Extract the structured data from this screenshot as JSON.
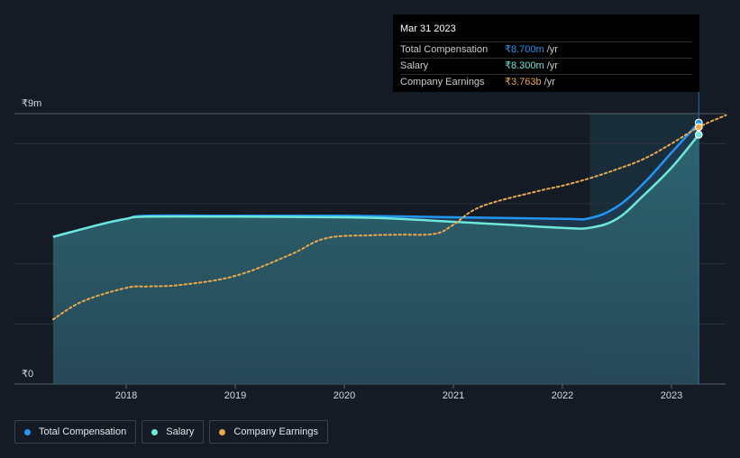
{
  "chart_data": {
    "type": "area",
    "title": "",
    "xlabel": "",
    "ylabel": "",
    "ylim": [
      0,
      9
    ],
    "y_unit": "₹m",
    "y_tick_labels": {
      "top": "₹9m",
      "bottom": "₹0"
    },
    "x_ticks": [
      "2018",
      "2019",
      "2020",
      "2021",
      "2022",
      "2023"
    ],
    "x_range": [
      2017.25,
      2023.5
    ],
    "highlight_range": [
      2022.25,
      2023.25
    ],
    "series": [
      {
        "name": "Total Compensation",
        "color": "#2196f3",
        "points": [
          [
            2017.33,
            4.9
          ],
          [
            2017.75,
            5.3
          ],
          [
            2018.0,
            5.5
          ],
          [
            2018.2,
            5.6
          ],
          [
            2019.0,
            5.6
          ],
          [
            2020.0,
            5.6
          ],
          [
            2021.0,
            5.55
          ],
          [
            2022.0,
            5.5
          ],
          [
            2022.25,
            5.52
          ],
          [
            2022.5,
            5.9
          ],
          [
            2022.75,
            6.7
          ],
          [
            2023.0,
            7.7
          ],
          [
            2023.25,
            8.7
          ]
        ]
      },
      {
        "name": "Salary",
        "color": "#6ee7d8",
        "points": [
          [
            2017.33,
            4.9
          ],
          [
            2017.75,
            5.3
          ],
          [
            2018.0,
            5.5
          ],
          [
            2018.2,
            5.57
          ],
          [
            2019.0,
            5.57
          ],
          [
            2020.0,
            5.55
          ],
          [
            2020.5,
            5.5
          ],
          [
            2021.0,
            5.4
          ],
          [
            2021.5,
            5.3
          ],
          [
            2022.0,
            5.2
          ],
          [
            2022.25,
            5.2
          ],
          [
            2022.5,
            5.5
          ],
          [
            2022.75,
            6.3
          ],
          [
            2023.0,
            7.2
          ],
          [
            2023.25,
            8.3
          ]
        ]
      },
      {
        "name": "Company Earnings",
        "color": "#e8a94c",
        "dashed": true,
        "points": [
          [
            2017.33,
            2.15
          ],
          [
            2017.6,
            2.75
          ],
          [
            2018.0,
            3.2
          ],
          [
            2018.2,
            3.25
          ],
          [
            2018.5,
            3.3
          ],
          [
            2019.0,
            3.6
          ],
          [
            2019.5,
            4.3
          ],
          [
            2019.83,
            4.85
          ],
          [
            2020.25,
            4.95
          ],
          [
            2020.5,
            4.97
          ],
          [
            2020.83,
            5.0
          ],
          [
            2021.0,
            5.3
          ],
          [
            2021.25,
            5.9
          ],
          [
            2021.75,
            6.4
          ],
          [
            2022.0,
            6.6
          ],
          [
            2022.25,
            6.85
          ],
          [
            2022.5,
            7.15
          ],
          [
            2022.75,
            7.5
          ],
          [
            2023.0,
            8.0
          ],
          [
            2023.25,
            8.55
          ],
          [
            2023.5,
            8.95
          ]
        ]
      }
    ],
    "tooltip": {
      "date": "Mar 31 2023",
      "rows": [
        {
          "label": "Total Compensation",
          "value": "₹8.700m",
          "unit": "/yr",
          "color": "#2196f3"
        },
        {
          "label": "Salary",
          "value": "₹8.300m",
          "unit": "/yr",
          "color": "#6ee7d8"
        },
        {
          "label": "Company Earnings",
          "value": "₹3.763b",
          "unit": "/yr",
          "color": "#e8a94c"
        }
      ]
    }
  },
  "legend": [
    {
      "label": "Total Compensation",
      "color": "#2196f3"
    },
    {
      "label": "Salary",
      "color": "#6ee7d8"
    },
    {
      "label": "Company Earnings",
      "color": "#e8a94c"
    }
  ]
}
